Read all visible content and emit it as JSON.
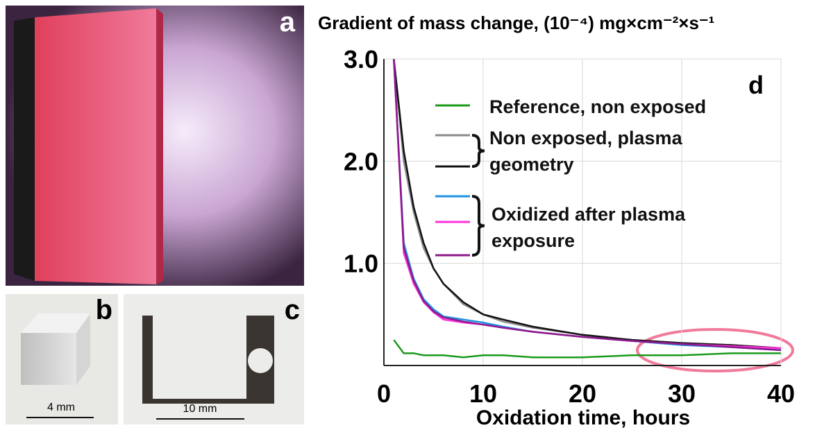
{
  "panels": {
    "a": "a",
    "b": "b",
    "c": "c",
    "b_scale": "4 mm",
    "c_scale": "10 mm"
  },
  "chart_data": {
    "type": "line",
    "title": "Gradient of mass change, (10⁻⁴) mg×cm⁻²×s⁻¹",
    "annotation": "d",
    "x_label": "Oxidation time, hours",
    "x": [
      1,
      2,
      3,
      4,
      5,
      6,
      8,
      10,
      12,
      15,
      20,
      25,
      30,
      35,
      40
    ],
    "xlim": [
      0,
      40
    ],
    "xticks": [
      0,
      10,
      20,
      30,
      40
    ],
    "ylim": [
      0,
      3
    ],
    "yticks": [
      {
        "value": 1,
        "label": "1.0"
      },
      {
        "value": 2,
        "label": "2.0"
      },
      {
        "value": 3,
        "label": "3.0"
      }
    ],
    "grid": true,
    "series": [
      {
        "name": "Reference, non exposed",
        "lines": [
          {
            "color": "#1a9a1a",
            "values": [
              0.25,
              0.12,
              0.12,
              0.1,
              0.1,
              0.1,
              0.08,
              0.1,
              0.1,
              0.08,
              0.08,
              0.1,
              0.1,
              0.12,
              0.12
            ]
          }
        ]
      },
      {
        "name": "Non exposed, plasma geometry",
        "lines": [
          {
            "color": "#8a8a8a",
            "values": [
              3.0,
              2.0,
              1.5,
              1.15,
              0.95,
              0.8,
              0.6,
              0.5,
              0.43,
              0.37,
              0.3,
              0.25,
              0.22,
              0.2,
              0.17
            ]
          },
          {
            "color": "#111111",
            "values": [
              3.0,
              2.1,
              1.55,
              1.2,
              0.95,
              0.8,
              0.62,
              0.5,
              0.45,
              0.38,
              0.3,
              0.25,
              0.22,
              0.2,
              0.17
            ]
          }
        ]
      },
      {
        "name": "Oxidized after plasma exposure",
        "lines": [
          {
            "color": "#1e90e6",
            "values": [
              3.0,
              1.2,
              0.85,
              0.65,
              0.55,
              0.48,
              0.45,
              0.42,
              0.38,
              0.33,
              0.28,
              0.24,
              0.2,
              0.18,
              0.15
            ]
          },
          {
            "color": "#ff33dd",
            "values": [
              3.0,
              1.1,
              0.8,
              0.62,
              0.52,
              0.45,
              0.42,
              0.4,
              0.37,
              0.33,
              0.28,
              0.24,
              0.21,
              0.19,
              0.17
            ]
          },
          {
            "color": "#8a1a8a",
            "values": [
              3.0,
              1.15,
              0.83,
              0.63,
              0.53,
              0.47,
              0.43,
              0.4,
              0.37,
              0.33,
              0.28,
              0.24,
              0.21,
              0.18,
              0.15
            ]
          }
        ]
      }
    ]
  }
}
